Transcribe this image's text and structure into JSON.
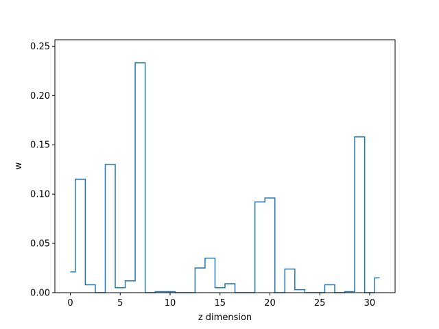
{
  "chart_data": {
    "type": "line",
    "drawstyle": "steps-mid",
    "title": "",
    "xlabel": "z dimension",
    "ylabel": "w",
    "xlim": [
      -1.55,
      32.55
    ],
    "ylim": [
      0,
      0.2565
    ],
    "xticks": [
      0,
      5,
      10,
      15,
      20,
      25,
      30
    ],
    "yticks": [
      0.0,
      0.05,
      0.1,
      0.15,
      0.2,
      0.25
    ],
    "ytick_labels": [
      "0.00",
      "0.05",
      "0.10",
      "0.15",
      "0.20",
      "0.25"
    ],
    "grid": false,
    "color": "#1f77b4",
    "x": [
      0,
      1,
      2,
      3,
      4,
      5,
      6,
      7,
      8,
      9,
      10,
      11,
      12,
      13,
      14,
      15,
      16,
      17,
      18,
      19,
      20,
      21,
      22,
      23,
      24,
      25,
      26,
      27,
      28,
      29,
      30,
      31
    ],
    "values": [
      0.021,
      0.115,
      0.008,
      0.0,
      0.13,
      0.005,
      0.012,
      0.233,
      0.0,
      0.001,
      0.001,
      0.0,
      0.0,
      0.025,
      0.035,
      0.005,
      0.009,
      0.0,
      0.0,
      0.092,
      0.096,
      0.0,
      0.024,
      0.003,
      0.0,
      0.0,
      0.008,
      0.0,
      0.001,
      0.158,
      0.0,
      0.015
    ]
  }
}
